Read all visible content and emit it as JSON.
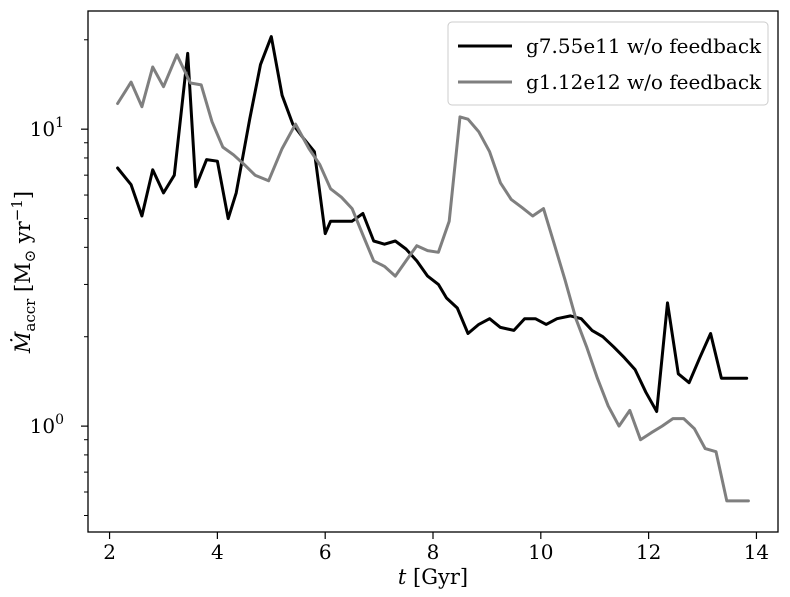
{
  "chart_data": {
    "type": "line",
    "title": "",
    "xlabel": {
      "italic": "t",
      "rest": " [Gyr]"
    },
    "ylabel": {
      "main": "Ṁ",
      "sub": "accr",
      "unit_open": " [M",
      "unit_sym": "⊙",
      "unit_mid": " yr",
      "unit_sup": "−1",
      "unit_close": "]"
    },
    "x_ticks": [
      2,
      4,
      6,
      8,
      10,
      12,
      14
    ],
    "y_major_ticks": [
      {
        "value": 1,
        "base": "10",
        "exp": "0"
      },
      {
        "value": 10,
        "base": "10",
        "exp": "1"
      }
    ],
    "y_minor_ticks": [
      0.5,
      0.6,
      0.7,
      0.8,
      0.9,
      2,
      3,
      4,
      5,
      6,
      7,
      8,
      9,
      20
    ],
    "xlim": [
      1.6,
      14.4
    ],
    "ylim": [
      0.44,
      25
    ],
    "y_scale": "log",
    "legend_position": "top-right",
    "series": [
      {
        "name": "g7.55e11 w/o feedback",
        "color": "#000000",
        "x": [
          2.15,
          2.4,
          2.6,
          2.8,
          3.0,
          3.2,
          3.45,
          3.6,
          3.8,
          4.0,
          4.2,
          4.35,
          4.6,
          4.8,
          5.0,
          5.2,
          5.4,
          5.6,
          5.8,
          6.0,
          6.1,
          6.3,
          6.5,
          6.7,
          6.9,
          7.1,
          7.3,
          7.5,
          7.7,
          7.9,
          8.1,
          8.25,
          8.45,
          8.65,
          8.85,
          9.05,
          9.25,
          9.5,
          9.7,
          9.9,
          10.1,
          10.3,
          10.55,
          10.75,
          10.95,
          11.15,
          11.35,
          11.55,
          11.75,
          11.95,
          12.15,
          12.35,
          12.55,
          12.75,
          12.95,
          13.15,
          13.35,
          13.6,
          13.82
        ],
        "y": [
          7.4,
          6.5,
          5.1,
          7.3,
          6.1,
          7.0,
          18.0,
          6.4,
          7.9,
          7.8,
          5.0,
          6.1,
          10.8,
          16.5,
          20.5,
          13.0,
          10.4,
          9.3,
          8.4,
          4.45,
          4.9,
          4.9,
          4.9,
          5.2,
          4.2,
          4.1,
          4.2,
          3.95,
          3.6,
          3.2,
          3.0,
          2.7,
          2.5,
          2.05,
          2.2,
          2.3,
          2.15,
          2.1,
          2.3,
          2.3,
          2.2,
          2.3,
          2.35,
          2.3,
          2.1,
          2.0,
          1.85,
          1.7,
          1.55,
          1.3,
          1.12,
          2.6,
          1.5,
          1.4,
          1.7,
          2.05,
          1.45,
          1.45,
          1.45
        ]
      },
      {
        "name": "g1.12e12 w/o feedback",
        "color": "#7f7f7f",
        "x": [
          2.15,
          2.4,
          2.6,
          2.8,
          3.0,
          3.25,
          3.5,
          3.7,
          3.9,
          4.1,
          4.3,
          4.5,
          4.7,
          4.95,
          5.2,
          5.45,
          5.7,
          5.9,
          6.1,
          6.3,
          6.5,
          6.7,
          6.9,
          7.1,
          7.3,
          7.5,
          7.7,
          7.9,
          8.1,
          8.3,
          8.5,
          8.65,
          8.85,
          9.05,
          9.25,
          9.45,
          9.65,
          9.85,
          10.05,
          10.25,
          10.45,
          10.65,
          10.85,
          11.05,
          11.25,
          11.45,
          11.65,
          11.85,
          12.05,
          12.25,
          12.45,
          12.65,
          12.85,
          13.05,
          13.25,
          13.45,
          13.65,
          13.85
        ],
        "y": [
          12.2,
          14.4,
          11.9,
          16.2,
          13.9,
          17.8,
          14.3,
          14.1,
          10.6,
          8.7,
          8.2,
          7.6,
          7.0,
          6.7,
          8.6,
          10.4,
          8.6,
          7.6,
          6.3,
          5.9,
          5.4,
          4.4,
          3.6,
          3.45,
          3.2,
          3.6,
          4.05,
          3.9,
          3.85,
          4.9,
          11.0,
          10.8,
          9.8,
          8.4,
          6.6,
          5.8,
          5.45,
          5.1,
          5.4,
          4.1,
          3.1,
          2.3,
          1.85,
          1.45,
          1.17,
          1.0,
          1.13,
          0.9,
          0.95,
          1.0,
          1.06,
          1.06,
          0.98,
          0.84,
          0.82,
          0.56,
          0.56,
          0.56
        ]
      }
    ]
  }
}
